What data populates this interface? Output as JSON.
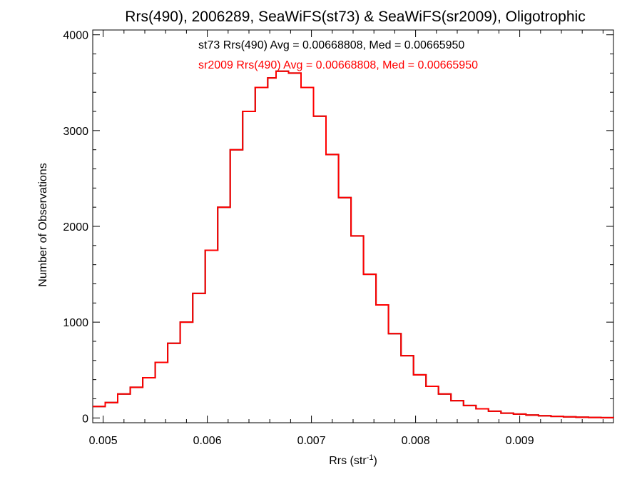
{
  "chart_data": {
    "type": "line",
    "step": true,
    "title": "Rrs(490), 2006289, SeaWiFS(st73) & SeaWiFS(sr2009), Oligotrophic",
    "xlabel_base": "Rrs (str",
    "xlabel_sup": "-1",
    "xlabel_close": ")",
    "ylabel": "Number of Observations",
    "xlim": [
      0.0049,
      0.0099
    ],
    "ylim": [
      -50,
      4050
    ],
    "x_ticks": [
      {
        "value": 0.005,
        "label": "0.005"
      },
      {
        "value": 0.006,
        "label": "0.006"
      },
      {
        "value": 0.007,
        "label": "0.007"
      },
      {
        "value": 0.008,
        "label": "0.008"
      },
      {
        "value": 0.009,
        "label": "0.009"
      }
    ],
    "y_ticks": [
      {
        "value": 0,
        "label": "0"
      },
      {
        "value": 1000,
        "label": "1000"
      },
      {
        "value": 2000,
        "label": "2000"
      },
      {
        "value": 3000,
        "label": "3000"
      },
      {
        "value": 4000,
        "label": "4000"
      }
    ],
    "annotations": [
      {
        "text": "st73 Rrs(490) Avg = 0.00668808, Med = 0.00665950",
        "color": "#000000"
      },
      {
        "text": "sr2009 Rrs(490) Avg = 0.00668808, Med = 0.00665950",
        "color": "#ff0000"
      }
    ],
    "series": [
      {
        "color": "#000000",
        "x": [
          0.0049,
          0.00502,
          0.00514,
          0.00526,
          0.00538,
          0.0055,
          0.00562,
          0.00574,
          0.00586,
          0.00598,
          0.0061,
          0.00622,
          0.00634,
          0.00646,
          0.00658,
          0.00666,
          0.00678,
          0.0069,
          0.00702,
          0.00714,
          0.00726,
          0.00738,
          0.0075,
          0.00762,
          0.00774,
          0.00786,
          0.00798,
          0.0081,
          0.00822,
          0.00834,
          0.00846,
          0.00858,
          0.0087,
          0.00882,
          0.00894,
          0.00906,
          0.00918,
          0.0093,
          0.00942,
          0.00954,
          0.00966,
          0.00978,
          0.0099
        ],
        "y": [
          120,
          160,
          250,
          320,
          420,
          580,
          780,
          1000,
          1300,
          1750,
          2200,
          2800,
          3200,
          3450,
          3550,
          3620,
          3600,
          3450,
          3150,
          2750,
          2300,
          1900,
          1500,
          1180,
          880,
          650,
          450,
          330,
          250,
          180,
          130,
          95,
          70,
          50,
          40,
          30,
          22,
          16,
          12,
          8,
          5,
          3,
          2
        ]
      },
      {
        "color": "#ff0000",
        "x": [
          0.0049,
          0.00502,
          0.00514,
          0.00526,
          0.00538,
          0.0055,
          0.00562,
          0.00574,
          0.00586,
          0.00598,
          0.0061,
          0.00622,
          0.00634,
          0.00646,
          0.00658,
          0.00666,
          0.00678,
          0.0069,
          0.00702,
          0.00714,
          0.00726,
          0.00738,
          0.0075,
          0.00762,
          0.00774,
          0.00786,
          0.00798,
          0.0081,
          0.00822,
          0.00834,
          0.00846,
          0.00858,
          0.0087,
          0.00882,
          0.00894,
          0.00906,
          0.00918,
          0.0093,
          0.00942,
          0.00954,
          0.00966,
          0.00978,
          0.0099
        ],
        "y": [
          120,
          160,
          250,
          320,
          420,
          580,
          780,
          1000,
          1300,
          1750,
          2200,
          2800,
          3200,
          3450,
          3550,
          3620,
          3600,
          3450,
          3150,
          2750,
          2300,
          1900,
          1500,
          1180,
          880,
          650,
          450,
          330,
          250,
          180,
          130,
          95,
          70,
          50,
          40,
          30,
          22,
          16,
          12,
          8,
          5,
          3,
          2
        ]
      }
    ]
  }
}
